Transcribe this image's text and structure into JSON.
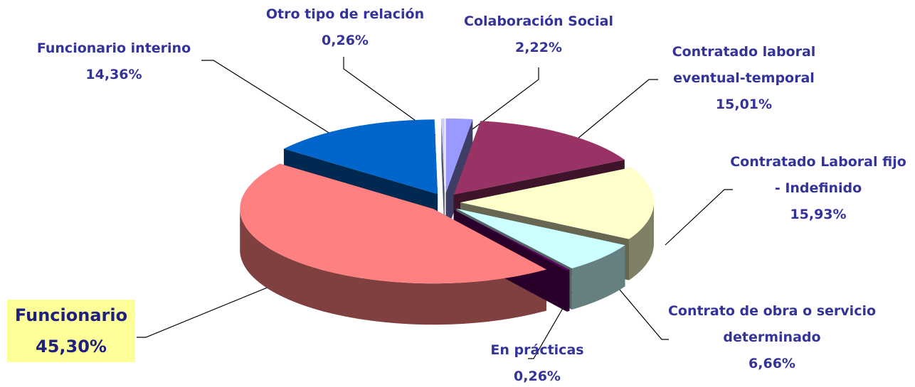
{
  "chart_data": {
    "type": "pie",
    "categories": [
      "Colaboración Social",
      "Contratado laboral eventual-temporal",
      "Contratado Laboral fijo - Indefinido",
      "Contrato de obra o servicio determinado",
      "En prácticas",
      "Funcionario",
      "Funcionario interino",
      "Otro tipo de relación"
    ],
    "values": [
      2.22,
      15.01,
      15.93,
      6.66,
      0.26,
      45.3,
      14.36,
      0.26
    ],
    "value_labels": [
      "2,22%",
      "15,01%",
      "15,93%",
      "6,66%",
      "0,26%",
      "45,30%",
      "14,36%",
      "0,26%"
    ],
    "colors": [
      "#9999ff",
      "#993366",
      "#ffffcc",
      "#ccffff",
      "#660066",
      "#ff8080",
      "#0066cc",
      "#ccccff"
    ]
  }
}
